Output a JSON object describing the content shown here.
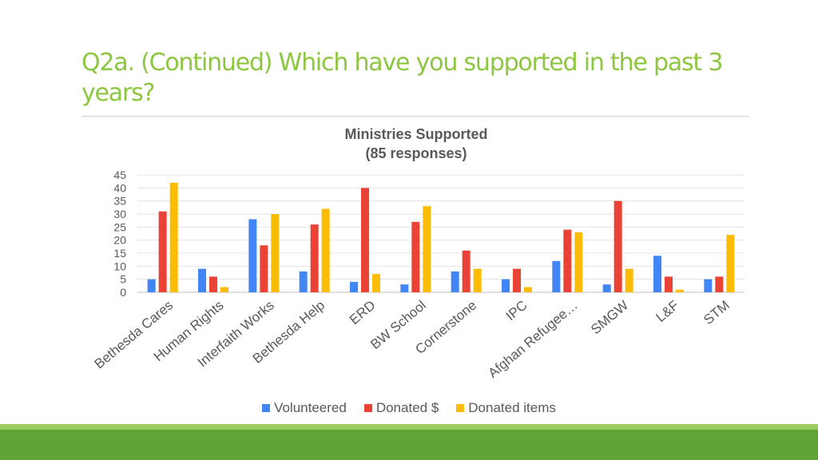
{
  "slide": {
    "title": "Q2a. (Continued) Which have you supported in the past 3 years?"
  },
  "colors": {
    "title": "#8dc63f",
    "band": "#62a337",
    "band_light": "#9ccc5f"
  },
  "chart_data": {
    "type": "bar",
    "title": "Ministries Supported",
    "subtitle": "(85 responses)",
    "xlabel": "",
    "ylabel": "",
    "ylim": [
      0,
      45
    ],
    "yticks": [
      0,
      5,
      10,
      15,
      20,
      25,
      30,
      35,
      40,
      45
    ],
    "grid": true,
    "legend_position": "bottom",
    "categories": [
      "Bethesda Cares",
      "Human Rights",
      "Interfaith Works",
      "Bethesda Help",
      "ERD",
      "BW School",
      "Cornerstone",
      "IPC",
      "Afghan Refugee…",
      "SMGW",
      "L&F",
      "STM"
    ],
    "series": [
      {
        "name": "Volunteered",
        "color": "#4285f4",
        "values": [
          5,
          9,
          28,
          8,
          4,
          3,
          8,
          5,
          12,
          3,
          14,
          5
        ]
      },
      {
        "name": "Donated $",
        "color": "#ea4335",
        "values": [
          31,
          6,
          18,
          26,
          40,
          27,
          16,
          9,
          24,
          35,
          6,
          6
        ]
      },
      {
        "name": "Donated items",
        "color": "#fbbc04",
        "values": [
          42,
          2,
          30,
          32,
          7,
          33,
          9,
          2,
          23,
          9,
          1,
          22
        ]
      }
    ]
  }
}
